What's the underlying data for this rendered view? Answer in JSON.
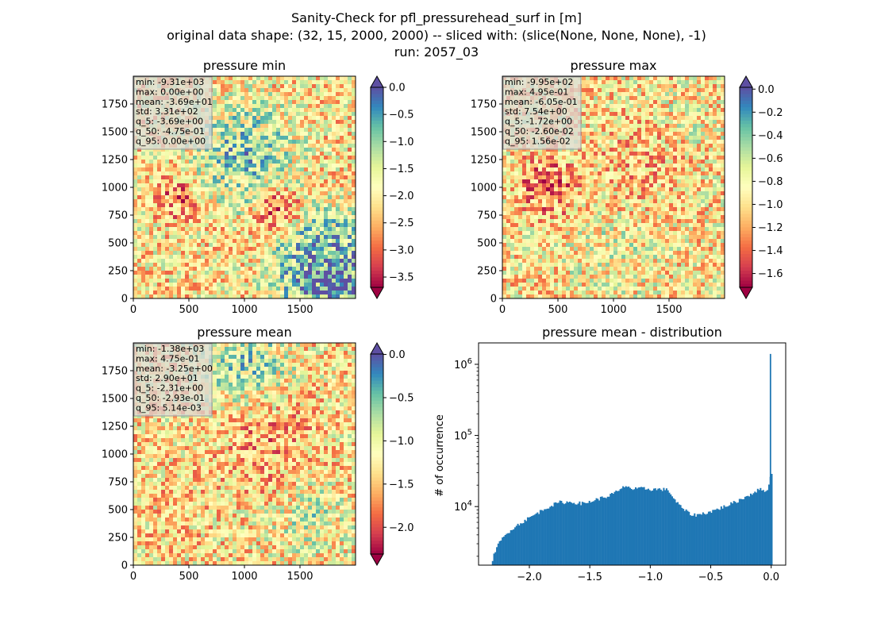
{
  "figure": {
    "title_lines": [
      "Sanity-Check for pfl_pressurehead_surf in [m]",
      "original data shape: (32, 15, 2000, 2000) -- sliced with: (slice(None, None, None), -1)",
      "run: 2057_03"
    ]
  },
  "chart_data": [
    {
      "type": "heatmap",
      "title": "pressure min",
      "xlim": [
        0,
        2000
      ],
      "ylim": [
        0,
        2000
      ],
      "xticks": [
        0,
        500,
        1000,
        1500
      ],
      "yticks": [
        0,
        250,
        500,
        750,
        1000,
        1250,
        1500,
        1750
      ],
      "colormap": "Spectral",
      "colorbar": {
        "range": [
          -3.69,
          0.0
        ],
        "ticks": [
          "0.0",
          "−0.5",
          "−1.0",
          "−1.5",
          "−2.0",
          "−2.5",
          "−3.0",
          "−3.5"
        ],
        "tick_values": [
          0.0,
          -0.5,
          -1.0,
          -1.5,
          -2.0,
          -2.5,
          -3.0,
          -3.5
        ],
        "extend": "both"
      },
      "stats": [
        "min: -9.31e+03",
        "max: 0.00e+00",
        "mean: -3.69e+01",
        "std: 3.31e+02",
        "q_5: -3.69e+00",
        "q_50: -4.75e-01",
        "q_95: 0.00e+00"
      ]
    },
    {
      "type": "heatmap",
      "title": "pressure max",
      "xlim": [
        0,
        2000
      ],
      "ylim": [
        0,
        2000
      ],
      "xticks": [
        0,
        500,
        1000,
        1500
      ],
      "yticks": [
        0,
        250,
        500,
        750,
        1000,
        1250,
        1500,
        1750
      ],
      "colormap": "Spectral",
      "colorbar": {
        "range": [
          -1.72,
          0.0156
        ],
        "ticks": [
          "0.0",
          "−0.2",
          "−0.4",
          "−0.6",
          "−0.8",
          "−1.0",
          "−1.2",
          "−1.4",
          "−1.6"
        ],
        "tick_values": [
          0.0,
          -0.2,
          -0.4,
          -0.6,
          -0.8,
          -1.0,
          -1.2,
          -1.4,
          -1.6
        ],
        "extend": "both"
      },
      "stats": [
        "min: -9.95e+02",
        "max: 4.95e-01",
        "mean: -6.05e-01",
        "std: 7.54e+00",
        "q_5: -1.72e+00",
        "q_50: -2.60e-02",
        "q_95: 1.56e-02"
      ]
    },
    {
      "type": "heatmap",
      "title": "pressure mean",
      "xlim": [
        0,
        2000
      ],
      "ylim": [
        0,
        2000
      ],
      "xticks": [
        0,
        500,
        1000,
        1500
      ],
      "yticks": [
        0,
        250,
        500,
        750,
        1000,
        1250,
        1500,
        1750
      ],
      "colormap": "Spectral",
      "colorbar": {
        "range": [
          -2.31,
          0.00514
        ],
        "ticks": [
          "0.0",
          "−0.5",
          "−1.0",
          "−1.5",
          "−2.0"
        ],
        "tick_values": [
          0.0,
          -0.5,
          -1.0,
          -1.5,
          -2.0
        ],
        "extend": "both"
      },
      "stats": [
        "min: -1.38e+03",
        "max: 4.75e-01",
        "mean: -3.25e+00",
        "std: 2.90e+01",
        "q_5: -2.31e+00",
        "q_50: -2.93e-01",
        "q_95: 5.14e-03"
      ]
    },
    {
      "type": "bar",
      "subtype": "histogram",
      "title": "pressure mean - distribution",
      "xlabel": "",
      "ylabel": "# of occurrence",
      "yscale": "log",
      "xlim": [
        -2.42,
        0.12
      ],
      "ylim": [
        1500,
        2000000
      ],
      "xticks": [
        -2.0,
        -1.5,
        -1.0,
        -0.5,
        0.0
      ],
      "xtick_labels": [
        "−2.0",
        "−1.5",
        "−1.0",
        "−0.5",
        "0.0"
      ],
      "yticks": [
        10000,
        100000,
        1000000
      ],
      "ytick_labels": [
        "10^4",
        "10^5",
        "10^6"
      ],
      "color": "#1f77b4",
      "profile": {
        "x": [
          -2.31,
          -2.27,
          -2.22,
          -2.15,
          -2.05,
          -1.95,
          -1.85,
          -1.75,
          -1.65,
          -1.55,
          -1.45,
          -1.35,
          -1.25,
          -1.2,
          -1.15,
          -1.05,
          -1.0,
          -0.95,
          -0.9,
          -0.85,
          -0.8,
          -0.75,
          -0.7,
          -0.65,
          -0.6,
          -0.5,
          -0.4,
          -0.3,
          -0.2,
          -0.1,
          -0.05,
          -0.02,
          -0.005
        ],
        "y": [
          1700,
          2700,
          3600,
          4800,
          6200,
          7800,
          9800,
          11500,
          11500,
          11000,
          12500,
          14000,
          17000,
          20000,
          17500,
          18000,
          17500,
          17500,
          17500,
          17000,
          12500,
          10000,
          8500,
          7600,
          7700,
          8500,
          9800,
          11500,
          14000,
          17500,
          16500,
          19000,
          29000
        ]
      },
      "peak": {
        "x": 0.0,
        "y": 1400000
      },
      "bin_width": 0.0116
    }
  ]
}
